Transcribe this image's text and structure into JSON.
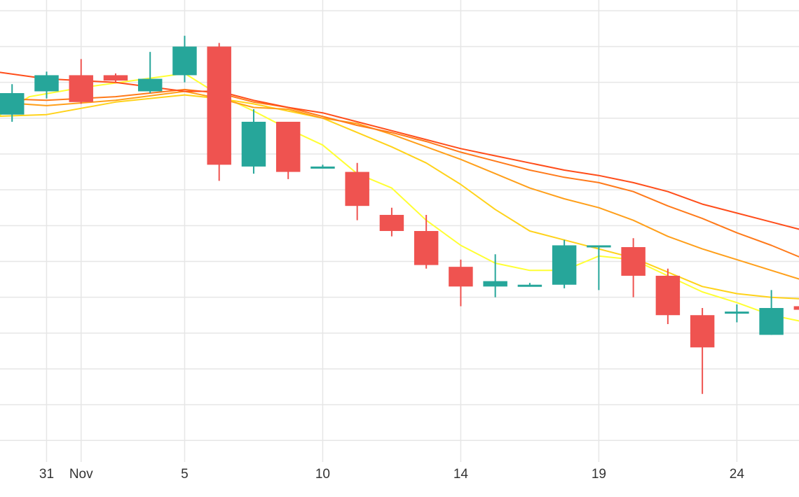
{
  "chart_data": {
    "type": "candlestick",
    "title": "",
    "xlabel": "",
    "ylabel": "",
    "x_ticks": [
      {
        "day": 31,
        "label": "31"
      },
      {
        "day": 32,
        "label": "Nov"
      },
      {
        "day": 35,
        "label": "5"
      },
      {
        "day": 39,
        "label": "10"
      },
      {
        "day": 43,
        "label": "14"
      },
      {
        "day": 47,
        "label": "19"
      },
      {
        "day": 51,
        "label": "24"
      }
    ],
    "x_range": [
      29.65,
      52.8
    ],
    "y_range": [
      0.4,
      13.3
    ],
    "grid": true,
    "colors": {
      "up": "#26a69a",
      "down": "#ef5350",
      "grid": "#e6e6e6",
      "axis_text": "#333333"
    },
    "candles": [
      {
        "day": 30,
        "open": 10.1,
        "high": 10.95,
        "low": 9.9,
        "close": 10.7
      },
      {
        "day": 31,
        "open": 10.75,
        "high": 11.3,
        "low": 10.55,
        "close": 11.2
      },
      {
        "day": 32,
        "open": 11.2,
        "high": 11.65,
        "low": 10.4,
        "close": 10.45
      },
      {
        "day": 33,
        "open": 11.2,
        "high": 11.25,
        "low": 11.0,
        "close": 11.05
      },
      {
        "day": 34,
        "open": 10.75,
        "high": 11.85,
        "low": 10.7,
        "close": 11.1
      },
      {
        "day": 35,
        "open": 11.2,
        "high": 12.3,
        "low": 11.0,
        "close": 12.0
      },
      {
        "day": 36,
        "open": 12.0,
        "high": 12.1,
        "low": 8.25,
        "close": 8.7
      },
      {
        "day": 37,
        "open": 8.65,
        "high": 10.25,
        "low": 8.45,
        "close": 9.9
      },
      {
        "day": 38,
        "open": 9.9,
        "high": 9.9,
        "low": 8.3,
        "close": 8.5
      },
      {
        "day": 39,
        "open": 8.65,
        "high": 8.7,
        "low": 8.6,
        "close": 8.65
      },
      {
        "day": 40,
        "open": 8.5,
        "high": 8.75,
        "low": 7.15,
        "close": 7.55
      },
      {
        "day": 41,
        "open": 7.3,
        "high": 7.5,
        "low": 6.7,
        "close": 6.85
      },
      {
        "day": 42,
        "open": 6.85,
        "high": 7.3,
        "low": 5.8,
        "close": 5.9
      },
      {
        "day": 43,
        "open": 5.85,
        "high": 6.05,
        "low": 4.75,
        "close": 5.3
      },
      {
        "day": 44,
        "open": 5.3,
        "high": 6.2,
        "low": 5.0,
        "close": 5.45
      },
      {
        "day": 45,
        "open": 5.3,
        "high": 5.4,
        "low": 5.3,
        "close": 5.35
      },
      {
        "day": 46,
        "open": 5.35,
        "high": 6.6,
        "low": 5.25,
        "close": 6.45
      },
      {
        "day": 47,
        "open": 6.45,
        "high": 6.45,
        "low": 5.2,
        "close": 6.45
      },
      {
        "day": 48,
        "open": 6.4,
        "high": 6.65,
        "low": 5.0,
        "close": 5.6
      },
      {
        "day": 49,
        "open": 5.6,
        "high": 5.8,
        "low": 4.25,
        "close": 4.5
      },
      {
        "day": 50,
        "open": 4.5,
        "high": 4.7,
        "low": 2.3,
        "close": 3.6
      },
      {
        "day": 51,
        "open": 4.6,
        "high": 4.8,
        "low": 4.3,
        "close": 4.6
      },
      {
        "day": 52,
        "open": 3.95,
        "high": 5.2,
        "low": 3.95,
        "close": 4.7
      },
      {
        "day": 53,
        "open": 4.75,
        "high": 5.5,
        "low": 3.9,
        "close": 4.65
      }
    ],
    "series": [
      {
        "color": "#ffff33",
        "values": [
          [
            29.5,
            10.0
          ],
          [
            30.5,
            10.6
          ],
          [
            32,
            10.85
          ],
          [
            33.5,
            11.05
          ],
          [
            35,
            11.25
          ],
          [
            36,
            10.65
          ],
          [
            37,
            10.2
          ],
          [
            38,
            9.7
          ],
          [
            39,
            9.25
          ],
          [
            40,
            8.45
          ],
          [
            41,
            8.05
          ],
          [
            42,
            7.15
          ],
          [
            43,
            6.45
          ],
          [
            44,
            5.95
          ],
          [
            45,
            5.75
          ],
          [
            46,
            5.75
          ],
          [
            47,
            6.15
          ],
          [
            48,
            6.05
          ],
          [
            49,
            5.6
          ],
          [
            50,
            5.15
          ],
          [
            51,
            4.85
          ],
          [
            52,
            4.5
          ],
          [
            53,
            4.3
          ]
        ]
      },
      {
        "color": "#ffd21a",
        "values": [
          [
            29.5,
            10.05
          ],
          [
            31,
            10.1
          ],
          [
            33,
            10.45
          ],
          [
            35,
            10.65
          ],
          [
            36,
            10.55
          ],
          [
            37,
            10.4
          ],
          [
            38,
            10.2
          ],
          [
            39,
            10.0
          ],
          [
            40,
            9.6
          ],
          [
            41,
            9.2
          ],
          [
            42,
            8.75
          ],
          [
            43,
            8.15
          ],
          [
            44,
            7.45
          ],
          [
            45,
            6.85
          ],
          [
            46,
            6.6
          ],
          [
            47,
            6.35
          ],
          [
            48,
            6.1
          ],
          [
            49,
            5.7
          ],
          [
            50,
            5.3
          ],
          [
            51,
            5.1
          ],
          [
            52,
            5.0
          ],
          [
            53,
            4.95
          ]
        ]
      },
      {
        "color": "#ff9f1a",
        "values": [
          [
            29.5,
            10.45
          ],
          [
            31,
            10.35
          ],
          [
            33,
            10.5
          ],
          [
            35,
            10.75
          ],
          [
            36,
            10.55
          ],
          [
            37,
            10.3
          ],
          [
            38,
            10.25
          ],
          [
            39,
            10.0
          ],
          [
            40,
            9.85
          ],
          [
            41,
            9.55
          ],
          [
            42,
            9.2
          ],
          [
            43,
            8.85
          ],
          [
            44,
            8.45
          ],
          [
            45,
            8.05
          ],
          [
            46,
            7.75
          ],
          [
            47,
            7.5
          ],
          [
            48,
            7.15
          ],
          [
            49,
            6.7
          ],
          [
            50,
            6.35
          ],
          [
            51,
            6.05
          ],
          [
            52,
            5.75
          ],
          [
            53,
            5.45
          ]
        ]
      },
      {
        "color": "#ff7a1a",
        "values": [
          [
            29.5,
            10.55
          ],
          [
            31,
            10.5
          ],
          [
            33,
            10.6
          ],
          [
            35,
            10.8
          ],
          [
            36,
            10.7
          ],
          [
            37,
            10.45
          ],
          [
            38,
            10.3
          ],
          [
            39,
            10.05
          ],
          [
            40,
            9.8
          ],
          [
            41,
            9.6
          ],
          [
            42,
            9.35
          ],
          [
            43,
            9.05
          ],
          [
            44,
            8.8
          ],
          [
            45,
            8.55
          ],
          [
            46,
            8.35
          ],
          [
            47,
            8.2
          ],
          [
            48,
            7.95
          ],
          [
            49,
            7.55
          ],
          [
            50,
            7.2
          ],
          [
            51,
            6.8
          ],
          [
            52,
            6.45
          ],
          [
            53,
            6.05
          ]
        ]
      },
      {
        "color": "#ff4d1a",
        "values": [
          [
            29.5,
            11.3
          ],
          [
            31,
            11.1
          ],
          [
            33,
            11.0
          ],
          [
            35,
            10.75
          ],
          [
            36,
            10.75
          ],
          [
            37,
            10.5
          ],
          [
            38,
            10.3
          ],
          [
            39,
            10.15
          ],
          [
            40,
            9.9
          ],
          [
            41,
            9.65
          ],
          [
            42,
            9.4
          ],
          [
            43,
            9.15
          ],
          [
            44,
            8.95
          ],
          [
            45,
            8.75
          ],
          [
            46,
            8.55
          ],
          [
            47,
            8.4
          ],
          [
            48,
            8.2
          ],
          [
            49,
            7.95
          ],
          [
            50,
            7.6
          ],
          [
            51,
            7.35
          ],
          [
            52,
            7.1
          ],
          [
            53,
            6.85
          ]
        ]
      }
    ]
  }
}
